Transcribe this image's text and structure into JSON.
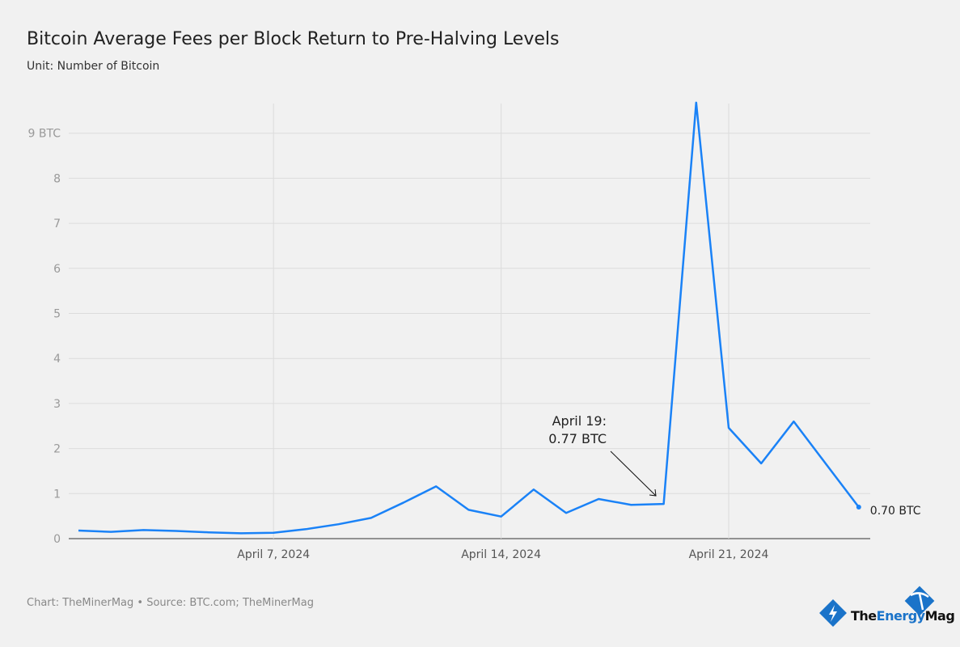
{
  "chart_data": {
    "type": "line",
    "title": "Bitcoin Average Fees per Block Return to Pre-Halving Levels",
    "subtitle": "Unit: Number of Bitcoin",
    "source": "Chart: TheMinerMag • Source: BTC.com; TheMinerMag",
    "x": [
      "2024-04-01",
      "2024-04-02",
      "2024-04-03",
      "2024-04-04",
      "2024-04-05",
      "2024-04-06",
      "2024-04-07",
      "2024-04-08",
      "2024-04-09",
      "2024-04-10",
      "2024-04-11",
      "2024-04-12",
      "2024-04-13",
      "2024-04-14",
      "2024-04-15",
      "2024-04-16",
      "2024-04-17",
      "2024-04-18",
      "2024-04-19",
      "2024-04-20",
      "2024-04-21",
      "2024-04-22",
      "2024-04-23",
      "2024-04-24",
      "2024-04-25"
    ],
    "values": [
      0.18,
      0.15,
      0.19,
      0.17,
      0.14,
      0.12,
      0.13,
      0.21,
      0.32,
      0.46,
      0.8,
      1.16,
      0.64,
      0.49,
      1.09,
      0.57,
      0.88,
      0.75,
      0.77,
      9.68,
      2.46,
      1.67,
      2.6,
      1.65,
      0.7
    ],
    "ylim": [
      0,
      9.7
    ],
    "yticks": [
      "0",
      "1",
      "2",
      "3",
      "4",
      "5",
      "6",
      "7",
      "8",
      "9 BTC"
    ],
    "xticks": [
      {
        "date": "2024-04-07",
        "label": "April 7, 2024"
      },
      {
        "date": "2024-04-14",
        "label": "April 14, 2024"
      },
      {
        "date": "2024-04-21",
        "label": "April 21, 2024"
      }
    ],
    "grid": true,
    "color": "#1a82f7",
    "annotations": [
      {
        "date": "2024-04-19",
        "lines": [
          "April 19:",
          "0.77 BTC"
        ]
      },
      {
        "date": "2024-04-25",
        "text": "0.70 BTC"
      }
    ]
  },
  "logo": {
    "text_a": "The",
    "text_b": "Energy",
    "text_c": "Mag",
    "brand_color": "#1a73c9"
  }
}
